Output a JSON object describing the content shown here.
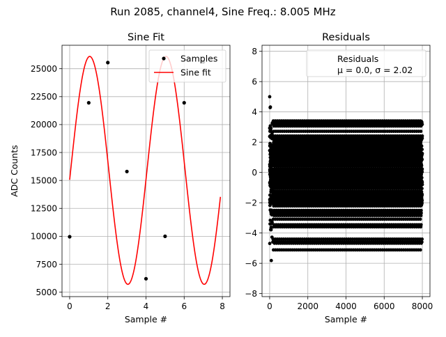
{
  "suptitle": "Run 2085, channel4, Sine Freq.: 8.005 MHz",
  "chart_data": [
    {
      "type": "line",
      "title": "Sine Fit",
      "xlabel": "Sample #",
      "ylabel": "ADC Counts",
      "xlim": [
        -0.4,
        8.4
      ],
      "ylim": [
        4600,
        27100
      ],
      "xticks": [
        0,
        2,
        4,
        6,
        8
      ],
      "yticks": [
        5000,
        7500,
        10000,
        12500,
        15000,
        17500,
        20000,
        22500,
        25000
      ],
      "grid": true,
      "legend": "top-right",
      "series": [
        {
          "name": "Samples",
          "style": "markers",
          "color": "#000000",
          "x": [
            0,
            1,
            2,
            3,
            4,
            5,
            6,
            7
          ],
          "y": [
            9960,
            21950,
            25550,
            15800,
            6200,
            10000,
            21950,
            25600
          ]
        },
        {
          "name": "Sine fit",
          "style": "line",
          "color": "#ff0000",
          "model": {
            "offset": 15900,
            "amplitude": 10200,
            "cycles_per_sample": 0.2501,
            "phase": -0.0825
          },
          "x_range": [
            0,
            7.9
          ]
        }
      ]
    },
    {
      "type": "scatter",
      "title": "Residuals",
      "xlabel": "Sample #",
      "ylabel": "",
      "xlim": [
        -400,
        8400
      ],
      "ylim": [
        -8.2,
        8.4
      ],
      "xticks": [
        0,
        2000,
        4000,
        6000,
        8000
      ],
      "yticks": [
        -8,
        -6,
        -4,
        -2,
        0,
        2,
        4,
        6,
        8
      ],
      "grid": true,
      "legend": "top-right",
      "series": [
        {
          "name": "Residuals",
          "note": "μ = 0.0, σ = 2.02",
          "color": "#000000",
          "count": 8000,
          "mean": 0.0,
          "std": 2.02
        }
      ]
    }
  ]
}
